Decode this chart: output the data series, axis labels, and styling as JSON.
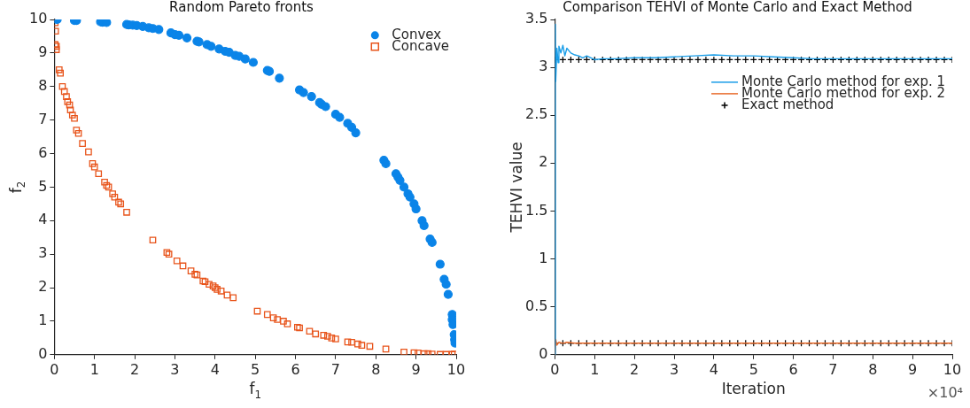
{
  "chart_data": [
    {
      "type": "scatter",
      "title": "Random Pareto fronts",
      "xlabel": "f$_{1}$",
      "ylabel": "f$_{2}$",
      "xlim": [
        0,
        10
      ],
      "ylim": [
        0,
        10
      ],
      "xticks": [
        0,
        1,
        2,
        3,
        4,
        5,
        6,
        7,
        8,
        9,
        10
      ],
      "yticks": [
        0,
        1,
        2,
        3,
        4,
        5,
        6,
        7,
        8,
        9,
        10
      ],
      "grid": false,
      "legend": "top right",
      "series": [
        {
          "name": "Convex",
          "color": "#0a84e8",
          "marker": "circle",
          "x": [
            0.07,
            0.5,
            0.55,
            1.15,
            1.2,
            1.3,
            1.8,
            1.85,
            1.95,
            2.05,
            2.2,
            2.35,
            2.45,
            2.6,
            2.9,
            3.0,
            3.1,
            3.3,
            3.55,
            3.6,
            3.8,
            3.9,
            4.1,
            4.25,
            4.35,
            4.5,
            4.6,
            4.75,
            4.95,
            5.3,
            5.35,
            5.6,
            6.1,
            6.2,
            6.4,
            6.6,
            6.65,
            6.75,
            7.0,
            7.1,
            7.3,
            7.4,
            7.5,
            8.2,
            8.25,
            8.5,
            8.55,
            8.6,
            8.7,
            8.8,
            8.85,
            8.95,
            9.0,
            9.15,
            9.2,
            9.35,
            9.4,
            9.6,
            9.7,
            9.75,
            9.8,
            9.9,
            9.9,
            9.92,
            9.95,
            9.96,
            9.97
          ],
          "values": [
            10,
            9.97,
            9.97,
            9.93,
            9.92,
            9.91,
            9.85,
            9.84,
            9.83,
            9.82,
            9.79,
            9.75,
            9.73,
            9.7,
            9.6,
            9.55,
            9.53,
            9.45,
            9.35,
            9.33,
            9.25,
            9.2,
            9.12,
            9.05,
            9.02,
            8.93,
            8.9,
            8.82,
            8.72,
            8.48,
            8.45,
            8.25,
            7.9,
            7.82,
            7.7,
            7.52,
            7.47,
            7.4,
            7.17,
            7.08,
            6.9,
            6.78,
            6.62,
            5.8,
            5.7,
            5.4,
            5.3,
            5.2,
            5.0,
            4.8,
            4.7,
            4.5,
            4.35,
            4.0,
            3.85,
            3.45,
            3.35,
            2.7,
            2.25,
            2.1,
            1.8,
            1.2,
            1.05,
            0.9,
            0.6,
            0.45,
            0.35
          ]
        },
        {
          "name": "Concave",
          "color": "#e8541b",
          "marker": "square",
          "x": [
            0.02,
            0.03,
            0.02,
            0.05,
            0.05,
            0.12,
            0.15,
            0.2,
            0.25,
            0.3,
            0.33,
            0.38,
            0.4,
            0.45,
            0.5,
            0.55,
            0.6,
            0.7,
            0.85,
            0.95,
            1.0,
            1.1,
            1.25,
            1.3,
            1.35,
            1.45,
            1.5,
            1.6,
            1.65,
            1.8,
            2.45,
            2.8,
            2.85,
            3.05,
            3.2,
            3.4,
            3.5,
            3.55,
            3.7,
            3.75,
            3.85,
            3.95,
            4.0,
            4.05,
            4.15,
            4.3,
            4.45,
            5.05,
            5.3,
            5.45,
            5.55,
            5.7,
            5.8,
            6.05,
            6.1,
            6.35,
            6.5,
            6.7,
            6.8,
            6.9,
            7.0,
            7.3,
            7.4,
            7.55,
            7.65,
            7.85,
            8.25,
            8.7,
            8.95,
            9.05,
            9.2,
            9.3,
            9.4,
            9.6,
            9.75,
            9.9,
            9.95
          ],
          "values": [
            9.9,
            9.65,
            9.25,
            9.2,
            9.1,
            8.5,
            8.4,
            8.0,
            7.85,
            7.7,
            7.55,
            7.45,
            7.3,
            7.15,
            7.05,
            6.7,
            6.6,
            6.3,
            6.05,
            5.7,
            5.6,
            5.4,
            5.15,
            5.05,
            5.0,
            4.8,
            4.7,
            4.55,
            4.5,
            4.25,
            3.42,
            3.05,
            3.0,
            2.8,
            2.65,
            2.5,
            2.4,
            2.38,
            2.2,
            2.18,
            2.1,
            2.05,
            2.0,
            1.95,
            1.9,
            1.78,
            1.7,
            1.3,
            1.2,
            1.1,
            1.05,
            1.0,
            0.92,
            0.82,
            0.8,
            0.7,
            0.62,
            0.58,
            0.55,
            0.5,
            0.47,
            0.38,
            0.37,
            0.32,
            0.28,
            0.25,
            0.17,
            0.08,
            0.06,
            0.05,
            0.03,
            0.03,
            0.02,
            0.01,
            0.01,
            0.01,
            0.02
          ]
        }
      ]
    },
    {
      "type": "line",
      "title": "Comparison TEHVI of Monte Carlo and Exact Method",
      "xlabel": "Iteration",
      "ylabel": "TEHVI value",
      "annotations": [
        "×10⁴"
      ],
      "xlim": [
        0,
        10
      ],
      "ylim": [
        0,
        3.5
      ],
      "xticks": [
        0,
        1,
        2,
        3,
        4,
        5,
        6,
        7,
        8,
        9,
        10
      ],
      "yticks": [
        0,
        0.5,
        1,
        1.5,
        2,
        2.5,
        3,
        3.5
      ],
      "grid": false,
      "legend": "top right",
      "series": [
        {
          "name": "Monte Carlo method for exp. 1",
          "color": "#1a9ee8",
          "x": [
            0,
            0.01,
            0.02,
            0.05,
            0.08,
            0.1,
            0.15,
            0.2,
            0.25,
            0.3,
            0.4,
            0.5,
            0.6,
            0.7,
            0.8,
            1.0,
            1.2,
            1.5,
            2,
            2.5,
            3,
            3.5,
            4,
            4.5,
            5,
            5.5,
            6,
            6.5,
            7,
            8,
            9,
            10
          ],
          "values": [
            0,
            3.45,
            2.85,
            3.2,
            3.05,
            3.22,
            3.15,
            3.23,
            3.12,
            3.2,
            3.15,
            3.13,
            3.12,
            3.1,
            3.12,
            3.08,
            3.09,
            3.09,
            3.1,
            3.1,
            3.11,
            3.12,
            3.13,
            3.12,
            3.12,
            3.11,
            3.1,
            3.09,
            3.09,
            3.09,
            3.09,
            3.09
          ]
        },
        {
          "name": "Monte Carlo method for exp. 2",
          "color": "#e86a2a",
          "x": [
            0,
            0.02,
            0.05,
            0.1,
            0.2,
            0.3,
            0.5,
            1,
            2,
            3,
            4,
            5,
            6,
            7,
            8,
            9,
            10
          ],
          "values": [
            0,
            0.16,
            0.1,
            0.13,
            0.12,
            0.13,
            0.12,
            0.12,
            0.12,
            0.12,
            0.12,
            0.12,
            0.12,
            0.12,
            0.12,
            0.12,
            0.12
          ]
        },
        {
          "name": "Exact method",
          "type": "scatter",
          "marker": "cross",
          "color": "#000000",
          "x": [
            0,
            0.2,
            0.4,
            0.6,
            0.8,
            1,
            1.2,
            1.4,
            1.6,
            1.8,
            2,
            2.2,
            2.4,
            2.6,
            2.8,
            3,
            3.2,
            3.4,
            3.6,
            3.8,
            4,
            4.2,
            4.4,
            4.6,
            4.8,
            5,
            5.2,
            5.4,
            5.6,
            5.8,
            6,
            6.2,
            6.4,
            6.6,
            6.8,
            7,
            7.2,
            7.4,
            7.6,
            7.8,
            8,
            8.2,
            8.4,
            8.6,
            8.8,
            9,
            9.2,
            9.4,
            9.6,
            9.8,
            10,
            0,
            0.2,
            0.4,
            0.6,
            0.8,
            1,
            1.2,
            1.4,
            1.6,
            1.8,
            2,
            2.2,
            2.4,
            2.6,
            2.8,
            3,
            3.2,
            3.4,
            3.6,
            3.8,
            4,
            4.2,
            4.4,
            4.6,
            4.8,
            5,
            5.2,
            5.4,
            5.6,
            5.8,
            6,
            6.2,
            6.4,
            6.6,
            6.8,
            7,
            7.2,
            7.4,
            7.6,
            7.8,
            8,
            8.2,
            8.4,
            8.6,
            8.8,
            9,
            9.2,
            9.4,
            9.6,
            9.8,
            10
          ],
          "values": [
            3.08,
            3.08,
            3.08,
            3.08,
            3.08,
            3.08,
            3.08,
            3.08,
            3.08,
            3.08,
            3.08,
            3.08,
            3.08,
            3.08,
            3.08,
            3.08,
            3.08,
            3.08,
            3.08,
            3.08,
            3.08,
            3.08,
            3.08,
            3.08,
            3.08,
            3.08,
            3.08,
            3.08,
            3.08,
            3.08,
            3.08,
            3.08,
            3.08,
            3.08,
            3.08,
            3.08,
            3.08,
            3.08,
            3.08,
            3.08,
            3.08,
            3.08,
            3.08,
            3.08,
            3.08,
            3.08,
            3.08,
            3.08,
            3.08,
            3.08,
            3.08,
            0.12,
            0.12,
            0.12,
            0.12,
            0.12,
            0.12,
            0.12,
            0.12,
            0.12,
            0.12,
            0.12,
            0.12,
            0.12,
            0.12,
            0.12,
            0.12,
            0.12,
            0.12,
            0.12,
            0.12,
            0.12,
            0.12,
            0.12,
            0.12,
            0.12,
            0.12,
            0.12,
            0.12,
            0.12,
            0.12,
            0.12,
            0.12,
            0.12,
            0.12,
            0.12,
            0.12,
            0.12,
            0.12,
            0.12,
            0.12,
            0.12,
            0.12,
            0.12,
            0.12,
            0.12,
            0.12,
            0.12,
            0.12,
            0.12,
            0.12,
            0.12
          ]
        }
      ]
    }
  ]
}
